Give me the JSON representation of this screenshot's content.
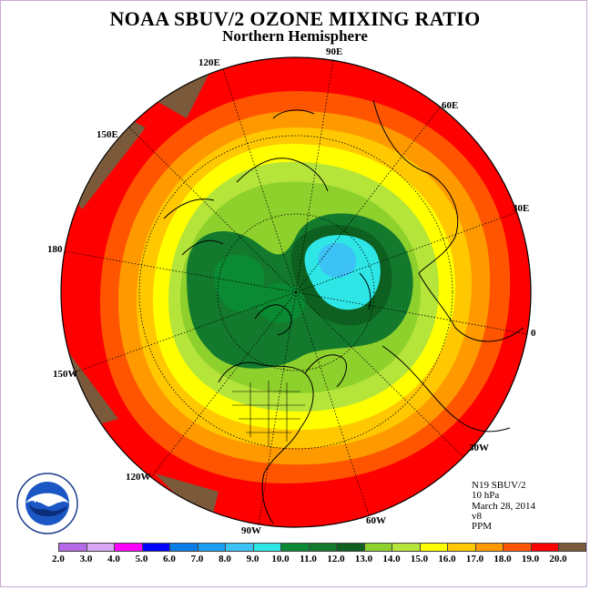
{
  "title": "NOAA SBUV/2 OZONE MIXING RATIO",
  "subtitle": "Northern Hemisphere",
  "longitude_labels": {
    "lon_90e": "90E",
    "lon_60e": "60E",
    "lon_30e": "30E",
    "lon_0": "0",
    "lon_30w": "30W",
    "lon_60w": "60W",
    "lon_90w": "90W",
    "lon_120w": "120W",
    "lon_150w": "150W",
    "lon_180": "180",
    "lon_150e": "150E",
    "lon_120e": "120E"
  },
  "info": {
    "instrument": "N19 SBUV/2",
    "pressure": "10 hPa",
    "date": "March 28, 2014",
    "version": "v8",
    "units": "PPM"
  },
  "logo_text": "NOAA",
  "colorbar": {
    "labels": [
      "2.0",
      "3.0",
      "4.0",
      "5.0",
      "6.0",
      "7.0",
      "8.0",
      "9.0",
      "10.0",
      "11.0",
      "12.0",
      "13.0",
      "14.0",
      "15.0",
      "16.0",
      "17.0",
      "18.0",
      "19.0",
      "20.0"
    ],
    "colors": [
      "#b469e6",
      "#d9a8f5",
      "#ff00ff",
      "#0000ff",
      "#0a7de6",
      "#1c9ef0",
      "#3cc2f5",
      "#2ee6e6",
      "#0a8a32",
      "#137a2d",
      "#0d6020",
      "#8fd12c",
      "#b5e43a",
      "#ffff00",
      "#ffc800",
      "#ff9900",
      "#ff5500",
      "#ff0000",
      "#7a5a3a"
    ]
  },
  "colors": {
    "land_brown": "#7a5a3a",
    "outer_red": "#ff0000"
  }
}
